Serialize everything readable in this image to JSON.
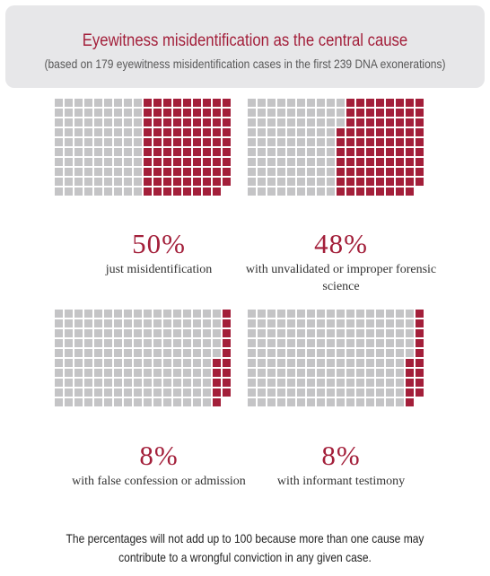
{
  "header": {
    "title": "Eyewitness misidentification as the central cause",
    "subtitle": "(based on 179 eyewitness misidentification cases in the first 239 DNA exonerations)"
  },
  "colors": {
    "highlight": "#a31f3a",
    "base": "#c4c4c6",
    "panel": "#e7e7e9"
  },
  "chart_data": [
    {
      "type": "waffle",
      "total": 179,
      "highlighted": 89,
      "value": "50%",
      "label": "just misidentification"
    },
    {
      "type": "waffle",
      "total": 179,
      "highlighted": 86,
      "value": "48%",
      "label": "with unvalidated or improper forensic science"
    },
    {
      "type": "waffle",
      "total": 179,
      "highlighted": 14,
      "value": "8%",
      "label": "with false confession or admission"
    },
    {
      "type": "waffle",
      "total": 179,
      "highlighted": 14,
      "value": "8%",
      "label": "with informant testimony"
    }
  ],
  "footnote": "The percentages will not add up to 100 because more than one cause may contribute to a wrongful conviction in any given case."
}
